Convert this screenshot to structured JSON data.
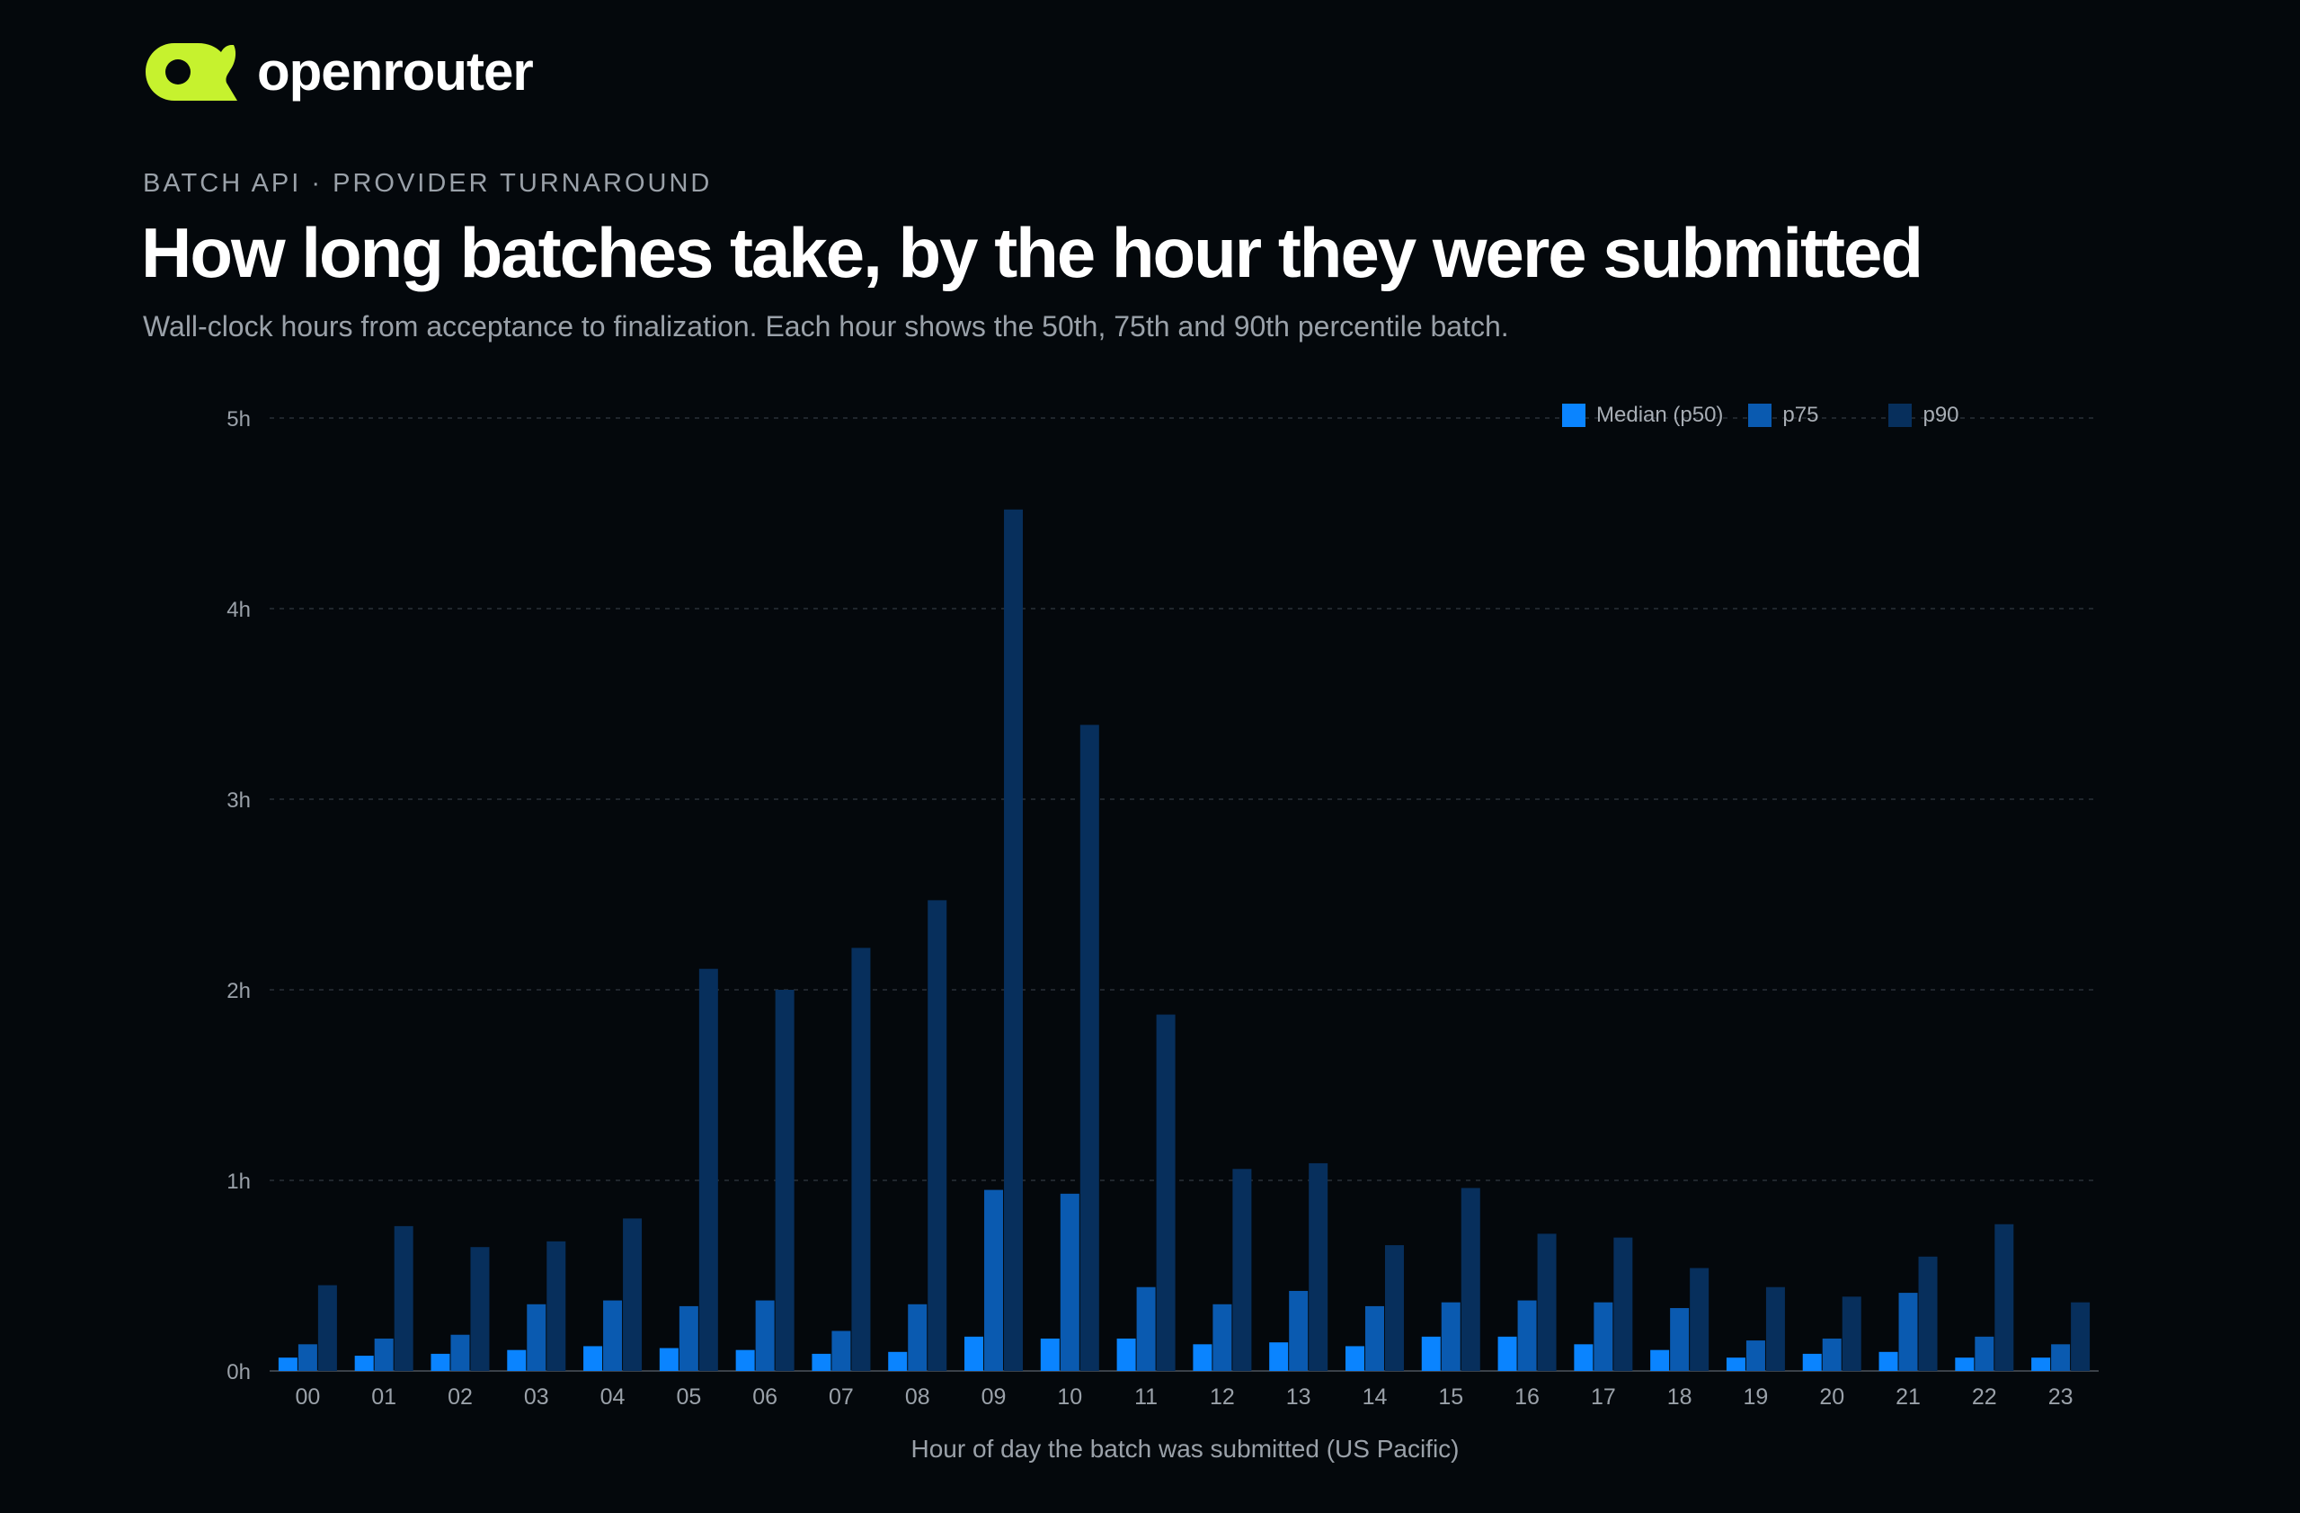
{
  "brand": {
    "name": "openrouter",
    "logo_color": "#c6f22e",
    "logo_icon": "openrouter-logo-icon"
  },
  "header": {
    "eyebrow": "BATCH API · PROVIDER TURNAROUND",
    "title": "How long batches take, by the hour they were submitted",
    "subtitle": "Wall-clock hours from acceptance to finalization. Each hour shows the 50th, 75th and 90th percentile batch."
  },
  "chart_data": {
    "type": "bar",
    "xlabel": "Hour of day the batch was submitted (US Pacific)",
    "ylabel": "",
    "ylim": [
      0,
      5
    ],
    "y_ticks": [
      0,
      1,
      2,
      3,
      4,
      5
    ],
    "y_tick_labels": [
      "0h",
      "1h",
      "2h",
      "3h",
      "4h",
      "5h"
    ],
    "grid": true,
    "legend_position": "top-right",
    "categories": [
      "00",
      "01",
      "02",
      "03",
      "04",
      "05",
      "06",
      "07",
      "08",
      "09",
      "10",
      "11",
      "12",
      "13",
      "14",
      "15",
      "16",
      "17",
      "18",
      "19",
      "20",
      "21",
      "22",
      "23"
    ],
    "series": [
      {
        "name": "Median (p50)",
        "color": "#0a84ff",
        "values": [
          0.07,
          0.08,
          0.09,
          0.11,
          0.13,
          0.12,
          0.11,
          0.09,
          0.1,
          0.18,
          0.17,
          0.17,
          0.14,
          0.15,
          0.13,
          0.18,
          0.18,
          0.14,
          0.11,
          0.07,
          0.09,
          0.1,
          0.07,
          0.07
        ]
      },
      {
        "name": "p75",
        "color": "#0a5ab0",
        "values": [
          0.14,
          0.17,
          0.19,
          0.35,
          0.37,
          0.34,
          0.37,
          0.21,
          0.35,
          0.95,
          0.93,
          0.44,
          0.35,
          0.42,
          0.34,
          0.36,
          0.37,
          0.36,
          0.33,
          0.16,
          0.17,
          0.41,
          0.18,
          0.14
        ]
      },
      {
        "name": "p90",
        "color": "#072f5c",
        "values": [
          0.45,
          0.76,
          0.65,
          0.68,
          0.8,
          2.11,
          2.0,
          2.22,
          2.47,
          4.52,
          3.39,
          1.87,
          1.06,
          1.09,
          0.66,
          0.96,
          0.72,
          0.7,
          0.54,
          0.44,
          0.39,
          0.6,
          0.77,
          0.36
        ]
      }
    ]
  }
}
